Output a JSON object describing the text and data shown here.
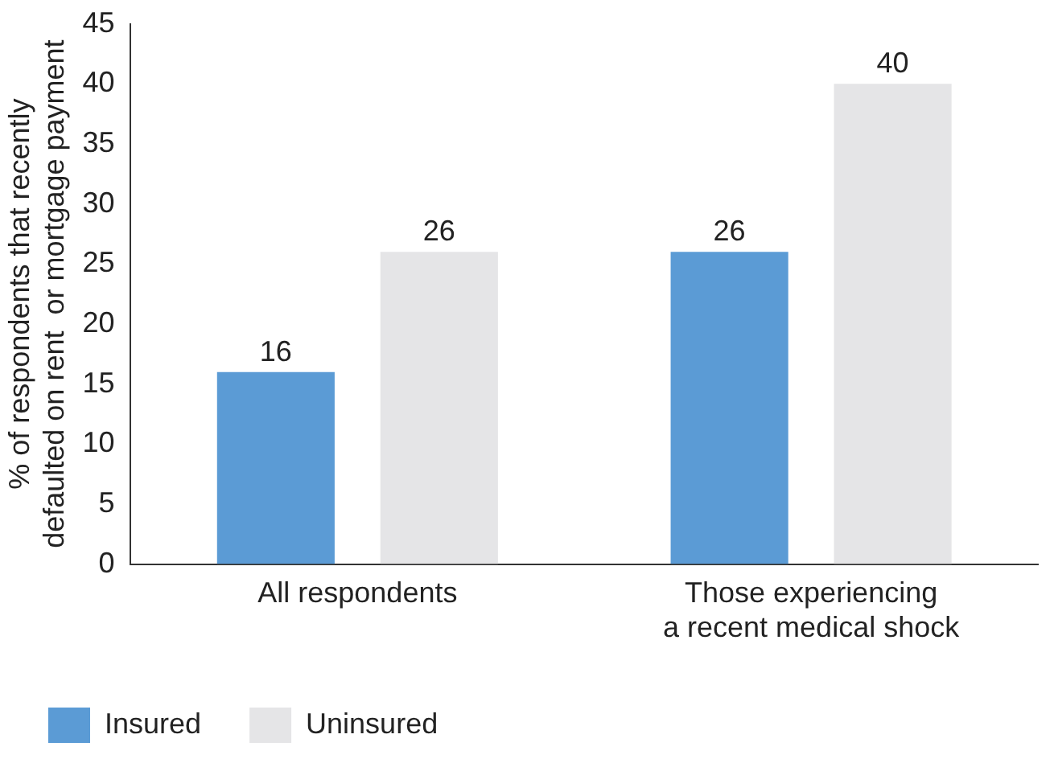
{
  "chart_data": {
    "type": "bar",
    "ylabel": "% of respondents that recently\ndefaulted on rent  or mortgage payment",
    "categories": [
      "All respondents",
      "Those experiencing\na recent medical shock"
    ],
    "series": [
      {
        "name": "Insured",
        "color": "#5b9bd5",
        "values": [
          16,
          26
        ]
      },
      {
        "name": "Uninsured",
        "color": "#e5e5e7",
        "values": [
          26,
          40
        ]
      }
    ],
    "ylim": [
      0,
      45
    ],
    "yticks": [
      0,
      5,
      10,
      15,
      20,
      25,
      30,
      35,
      40,
      45
    ],
    "grid": false,
    "legend": "bottom left",
    "data_labels": true
  }
}
